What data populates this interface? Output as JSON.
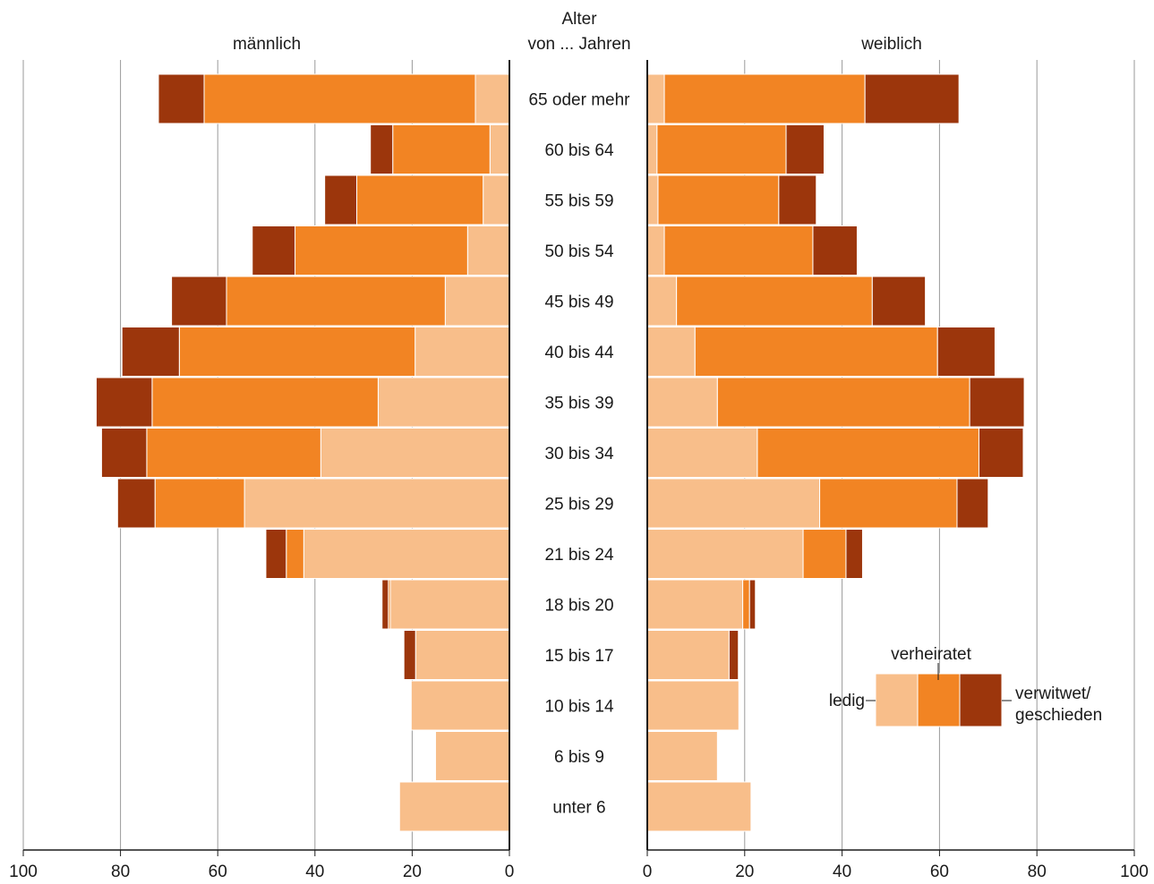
{
  "chart_data": {
    "type": "bar",
    "subtype": "population-pyramid-stacked",
    "headers": {
      "left": "männlich",
      "center_line1": "Alter",
      "center_line2": "von ... Jahren",
      "right": "weiblich"
    },
    "categories": [
      "65 oder mehr",
      "60 bis 64",
      "55 bis 59",
      "50 bis 54",
      "45 bis 49",
      "40 bis 44",
      "35 bis 39",
      "30 bis 34",
      "25 bis 29",
      "21 bis 24",
      "18 bis 20",
      "15 bis 17",
      "10 bis 14",
      "6 bis 9",
      "unter 6"
    ],
    "x_ticks": [
      "100",
      "80",
      "60",
      "40",
      "20",
      "0"
    ],
    "x_ticks_right": [
      "0",
      "20",
      "40",
      "60",
      "80",
      "100"
    ],
    "xlim": [
      0,
      100
    ],
    "grid": true,
    "legend": {
      "placement": "bottom-right",
      "labels": [
        "ledig",
        "verheiratet",
        "verwitwet/",
        "geschieden"
      ]
    },
    "series": [
      {
        "name": "ledig",
        "color": "#f8be8a"
      },
      {
        "name": "verheiratet",
        "color": "#f28423"
      },
      {
        "name": "verwitwet/geschieden",
        "color": "#9c360c"
      }
    ],
    "male": {
      "ledig": [
        7.0,
        4.0,
        5.4,
        8.6,
        13.2,
        19.4,
        27.0,
        38.8,
        54.5,
        42.3,
        24.5,
        19.3,
        20.2,
        15.2,
        22.6
      ],
      "verheiratet": [
        55.8,
        20.0,
        26.0,
        35.5,
        45.0,
        48.5,
        46.5,
        35.8,
        18.4,
        3.6,
        0.4,
        0,
        0,
        0,
        0
      ],
      "verwitwet": [
        9.4,
        4.6,
        6.6,
        8.8,
        11.3,
        11.8,
        11.5,
        9.3,
        7.7,
        4.2,
        1.3,
        2.4,
        0,
        0,
        0
      ]
    },
    "female": {
      "ledig": [
        3.5,
        2.0,
        2.2,
        3.5,
        6.0,
        9.8,
        14.4,
        22.6,
        35.4,
        32.0,
        19.6,
        16.8,
        18.8,
        14.4,
        21.3
      ],
      "verheiratet": [
        41.2,
        26.5,
        24.8,
        30.5,
        40.2,
        49.8,
        51.8,
        45.5,
        28.2,
        8.8,
        1.4,
        0,
        0,
        0,
        0
      ],
      "verwitwet": [
        19.3,
        7.8,
        7.7,
        9.1,
        10.9,
        11.8,
        11.2,
        9.1,
        6.4,
        3.4,
        1.2,
        1.9,
        0,
        0,
        0
      ]
    }
  }
}
